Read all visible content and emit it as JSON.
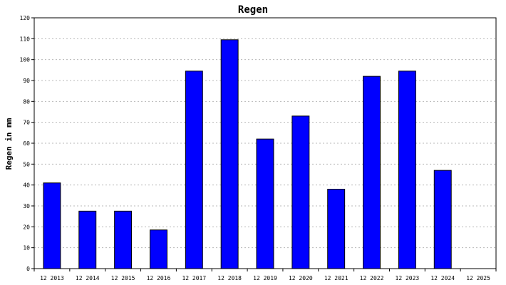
{
  "chart_data": {
    "type": "bar",
    "title": "Regen",
    "xlabel": "",
    "ylabel": "Regen in mm",
    "ylim": [
      0,
      120
    ],
    "ytick_step": 10,
    "grid": true,
    "legend": "none",
    "bar_color": "#0000ff",
    "categories": [
      "12 2013",
      "12 2014",
      "12 2015",
      "12 2016",
      "12 2017",
      "12 2018",
      "12 2019",
      "12 2020",
      "12 2021",
      "12 2022",
      "12 2023",
      "12 2024",
      "12 2025"
    ],
    "values": [
      41,
      27.5,
      27.5,
      18.5,
      94.5,
      109.5,
      62,
      73,
      38,
      92,
      94.5,
      47,
      null
    ]
  }
}
